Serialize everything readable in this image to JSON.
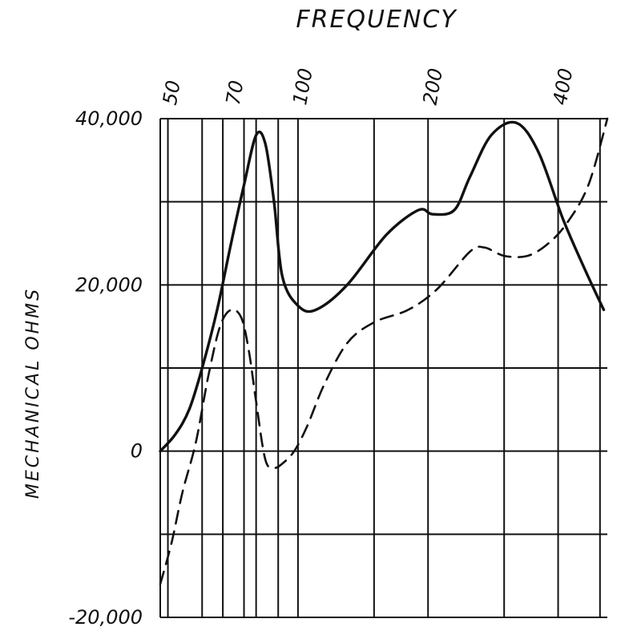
{
  "chart_data": {
    "type": "line",
    "title": "FREQUENCY",
    "xlabel": "",
    "ylabel": "MECHANICAL OHMS",
    "x_scale": "log",
    "x_ticks": [
      {
        "value": 50,
        "label": "50"
      },
      {
        "value": 70,
        "label": "70"
      },
      {
        "value": 100,
        "label": "100"
      },
      {
        "value": 200,
        "label": "200"
      },
      {
        "value": 400,
        "label": "400"
      }
    ],
    "y_ticks": [
      {
        "value": 40000,
        "label": "40,000"
      },
      {
        "value": 20000,
        "label": "20,000"
      },
      {
        "value": 0,
        "label": "0"
      },
      {
        "value": -20000,
        "label": "-20,000"
      }
    ],
    "xlim": [
      48,
      520
    ],
    "ylim": [
      -20000,
      40000
    ],
    "grid": true,
    "x_grid": [
      48,
      50,
      60,
      67,
      75,
      80,
      90,
      100,
      150,
      200,
      300,
      400,
      500
    ],
    "y_grid": [
      -20000,
      -10000,
      0,
      10000,
      20000,
      30000,
      40000
    ],
    "series": [
      {
        "style": "solid",
        "x": [
          48,
          52,
          56,
          60,
          65,
          70,
          75,
          80,
          84,
          88,
          92,
          100,
          110,
          130,
          160,
          190,
          205,
          230,
          250,
          280,
          320,
          360,
          410,
          460,
          510
        ],
        "y": [
          0,
          2000,
          5000,
          10000,
          17000,
          25000,
          32000,
          38000,
          37000,
          30000,
          21000,
          17500,
          17000,
          20000,
          26000,
          29000,
          28500,
          29000,
          33000,
          38000,
          39500,
          36000,
          28000,
          22000,
          17000
        ]
      },
      {
        "style": "dashed",
        "x": [
          48,
          51,
          54,
          58,
          62,
          66,
          70,
          74,
          77,
          80,
          84,
          88,
          92,
          98,
          105,
          115,
          130,
          150,
          180,
          210,
          250,
          270,
          300,
          340,
          380,
          420,
          470,
          520
        ],
        "y": [
          -16000,
          -11000,
          -5000,
          1000,
          9000,
          15000,
          17000,
          16000,
          12000,
          6000,
          -1000,
          -2000,
          -1500,
          0,
          3000,
          8000,
          13000,
          15500,
          17000,
          19500,
          24000,
          24500,
          23500,
          23500,
          25000,
          27500,
          32000,
          40000
        ]
      }
    ]
  }
}
